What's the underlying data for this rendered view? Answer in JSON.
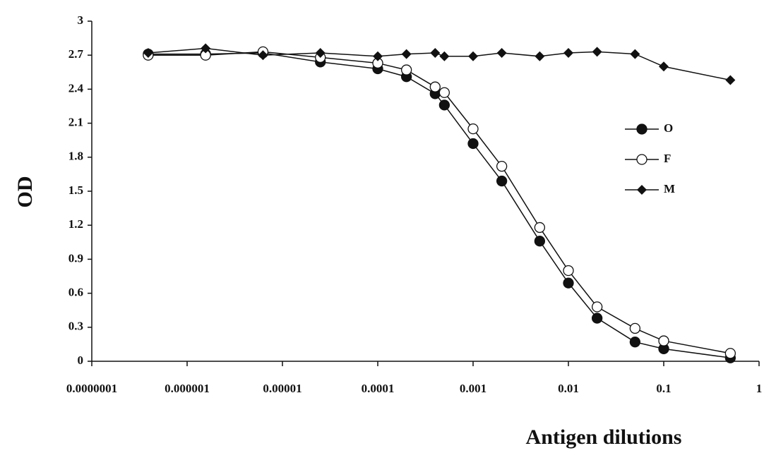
{
  "chart_data": {
    "type": "line",
    "x_label": "Antigen dilutions",
    "y_label": "OD",
    "x": [
      3.90625e-07,
      1.5625e-06,
      6.25e-06,
      2.5e-05,
      0.0001,
      0.0002,
      0.0004,
      0.0005,
      0.001,
      0.002,
      0.005,
      0.01,
      0.02,
      0.05,
      0.1,
      0.5
    ],
    "series": [
      {
        "name": "O",
        "color": "#111111",
        "marker": "filled-circle",
        "values": [
          2.71,
          2.71,
          2.72,
          2.64,
          2.58,
          2.51,
          2.36,
          2.26,
          1.92,
          1.59,
          1.06,
          0.69,
          0.38,
          0.17,
          0.11,
          0.03
        ]
      },
      {
        "name": "F",
        "color": "#111111",
        "marker": "open-circle",
        "values": [
          2.7,
          2.7,
          2.73,
          2.68,
          2.63,
          2.57,
          2.42,
          2.37,
          2.05,
          1.72,
          1.18,
          0.8,
          0.48,
          0.29,
          0.18,
          0.07
        ]
      },
      {
        "name": "M",
        "color": "#111111",
        "marker": "diamond",
        "values": [
          2.72,
          2.76,
          2.7,
          2.72,
          2.69,
          2.71,
          2.72,
          2.69,
          2.69,
          2.72,
          2.69,
          2.72,
          2.73,
          2.71,
          2.6,
          2.48
        ]
      }
    ],
    "xscale": "log",
    "xlim": [
      1e-07,
      1
    ],
    "xticks": [
      {
        "value": 1e-07,
        "label": "0.0000001"
      },
      1e-06,
      1e-05,
      0.0001,
      0.001,
      0.01,
      0.1,
      1
    ],
    "ylim": [
      0,
      3
    ],
    "yticks": [
      0,
      0.3,
      0.6,
      0.9,
      1.2,
      1.5,
      1.8,
      2.1,
      2.4,
      2.7,
      3
    ],
    "legend": "right"
  }
}
